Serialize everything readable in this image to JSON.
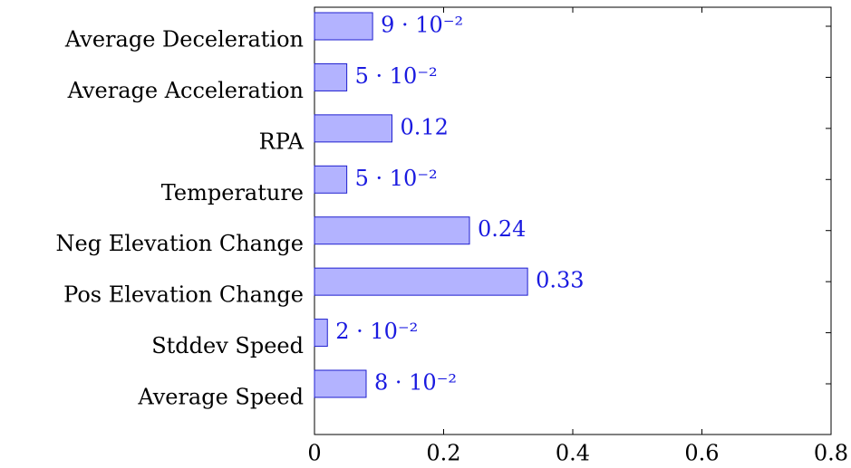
{
  "chart_data": {
    "type": "bar",
    "orientation": "horizontal",
    "categories": [
      "Average Deceleration",
      "Average Acceleration",
      "RPA",
      "Temperature",
      "Neg Elevation Change",
      "Pos Elevation Change",
      "Stddev Speed",
      "Average Speed"
    ],
    "values": [
      0.09,
      0.05,
      0.12,
      0.05,
      0.24,
      0.33,
      0.02,
      0.08
    ],
    "value_labels": [
      "9 · 10⁻²",
      "5 · 10⁻²",
      "0.12",
      "5 · 10⁻²",
      "0.24",
      "0.33",
      "2 · 10⁻²",
      "8 · 10⁻²"
    ],
    "color": "#b3b3ff",
    "edge_color": "#1f1fcf",
    "label_color": "#1a1ae0",
    "xlim": [
      0,
      0.8
    ],
    "xticks": [
      0,
      0.2,
      0.4,
      0.6,
      0.8
    ],
    "grid": false
  }
}
